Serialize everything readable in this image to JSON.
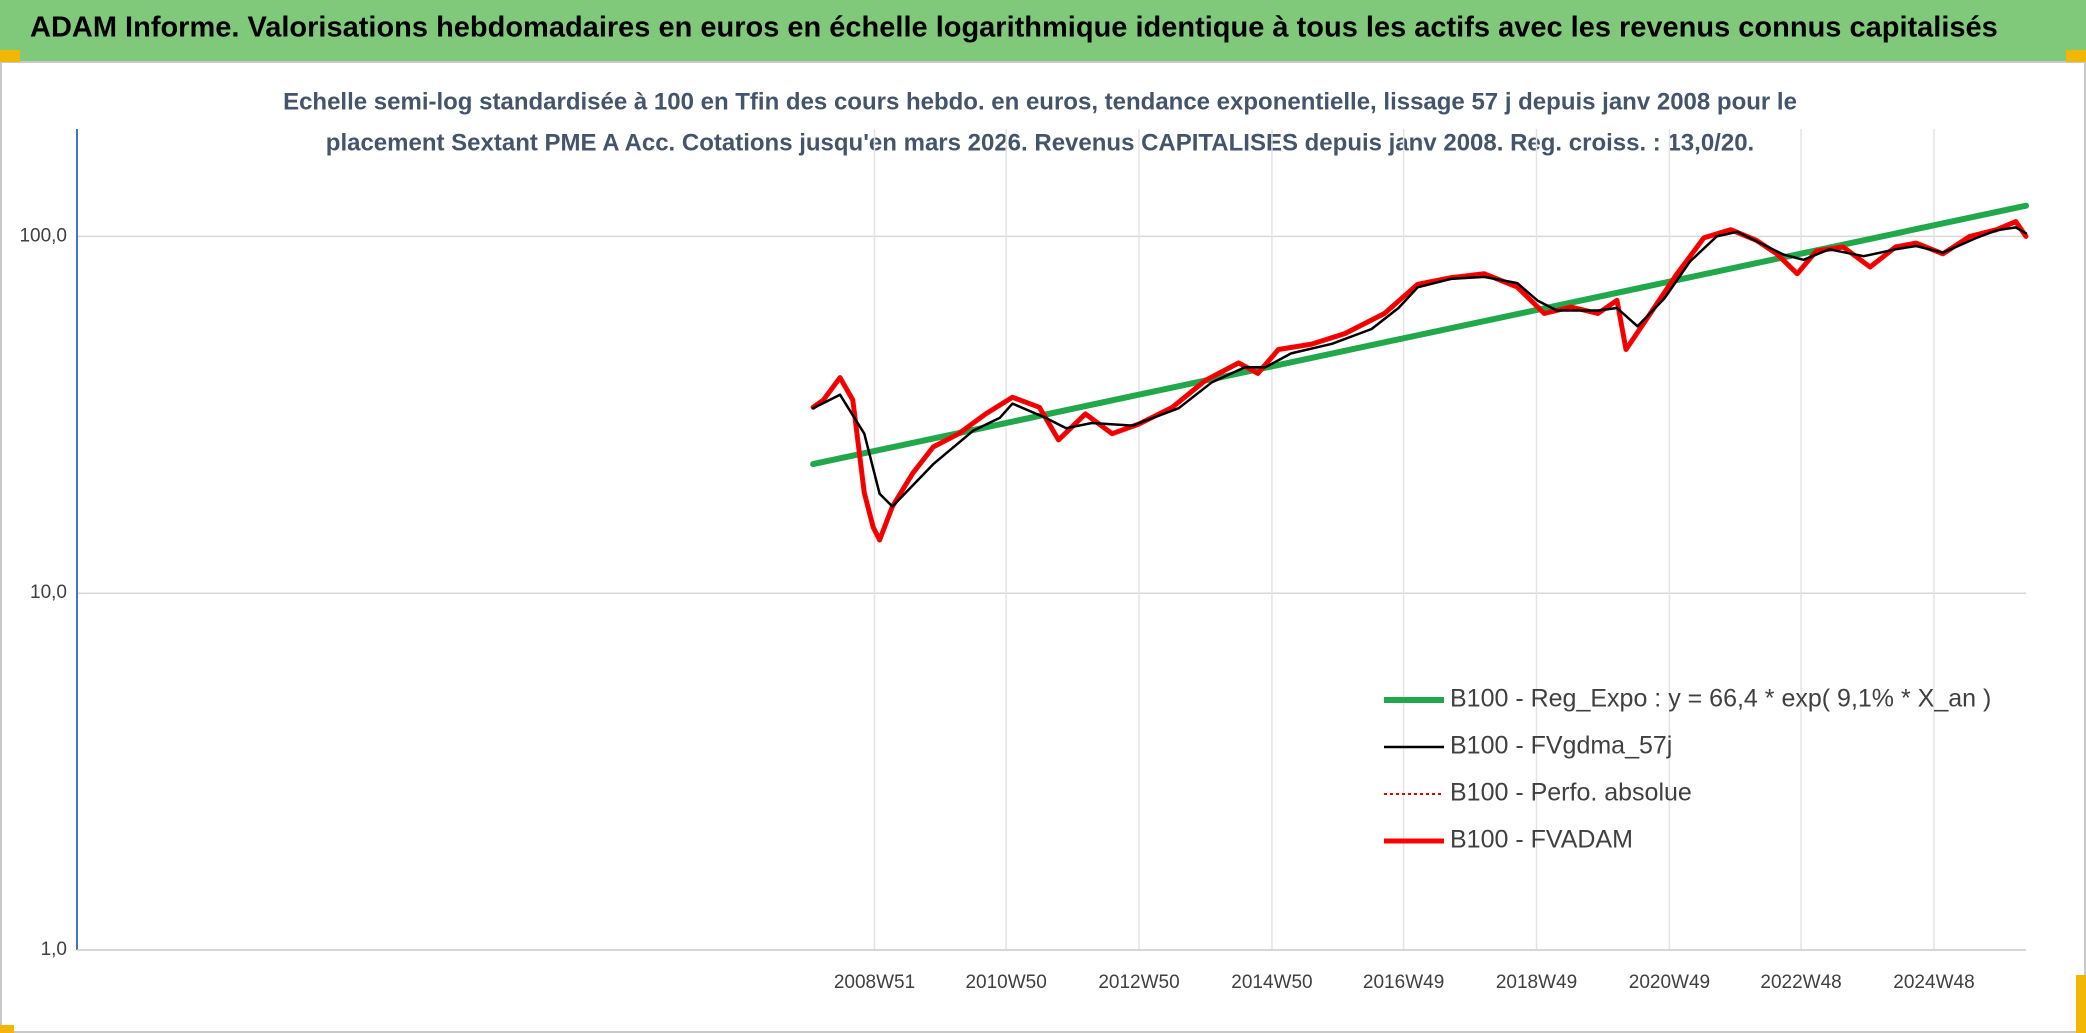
{
  "chart_data": {
    "type": "line",
    "title": "ADAM Informe. Valorisations hebdomadaires en euros en échelle logarithmique identique à tous les actifs avec les revenus connus capitalisés",
    "subtitle": [
      "Echelle semi-log standardisée à 100 en Tfin des cours hebdo. en euros, tendance exponentielle, lissage 57 j depuis janv 2008 pour le",
      "placement Sextant PME A Acc. Cotations jusqu'en mars 2026. Revenus CAPITALISES depuis janv 2008. Reg. croiss. : 13,0/20."
    ],
    "log_scale": true,
    "grid": true,
    "legend_position": "right",
    "xlim": [
      "1996W51",
      "2026W16"
    ],
    "xticks": [
      "2008W51",
      "2010W50",
      "2012W50",
      "2014W50",
      "2016W49",
      "2018W49",
      "2020W49",
      "2022W48",
      "2024W48"
    ],
    "ylim": [
      1,
      200
    ],
    "yticks": [
      {
        "value": 1,
        "label": "1,0"
      },
      {
        "value": 10,
        "label": "10,0"
      },
      {
        "value": 100,
        "label": "100,0"
      }
    ],
    "series": [
      {
        "name": "B100 - Reg_Expo : y = 66,4 * exp( 9,1% *  X_an )",
        "color": "#21a84a",
        "width": 6,
        "dash": "none",
        "x": [
          "2008W03",
          "2026W16"
        ],
        "values": [
          23.0,
          121.9
        ]
      },
      {
        "name": "B100 - FVgdma_57j",
        "color": "#000000",
        "width": 2.5,
        "dash": "none",
        "x": [
          "2008W03",
          "2008W24",
          "2008W43",
          "2009W03",
          "2009W13",
          "2009W45",
          "2010W24",
          "2010W45",
          "2011W03",
          "2011W29",
          "2011W45",
          "2012W13",
          "2012W45",
          "2013W29",
          "2014W03",
          "2014W29",
          "2014W45",
          "2015W13",
          "2015W45",
          "2016W24",
          "2016W45",
          "2017W08",
          "2017W34",
          "2018W08",
          "2018W34",
          "2018W50",
          "2019W13",
          "2019W45",
          "2020W08",
          "2020W24",
          "2020W45",
          "2021W13",
          "2021W34",
          "2021W50",
          "2022W13",
          "2022W34",
          "2022W50",
          "2023W18",
          "2023W45",
          "2024W18",
          "2024W34",
          "2025W03",
          "2025W29",
          "2025W45",
          "2026W08",
          "2026W16"
        ],
        "values": [
          33,
          36,
          28,
          19,
          17.5,
          23,
          28.5,
          31,
          34,
          31,
          29,
          30,
          29.5,
          33,
          39,
          43,
          43,
          47,
          50,
          55,
          63,
          72,
          76,
          77,
          74,
          66,
          62,
          62,
          63,
          56,
          67,
          85,
          100,
          103,
          97,
          89,
          86,
          92,
          88,
          92,
          94,
          90,
          99,
          104,
          106,
          102
        ]
      },
      {
        "name": "B100 - Perfo. absolue",
        "color": "#e00000",
        "width": 2,
        "dash": "3 3",
        "x": [
          "2008W03",
          "2008W11",
          "2008W24",
          "2008W34",
          "2008W43",
          "2008W50",
          "2009W03",
          "2009W13",
          "2009W29",
          "2009W45",
          "2010W13",
          "2010W34",
          "2011W03",
          "2011W24",
          "2011W39",
          "2012W08",
          "2012W29",
          "2012W50",
          "2013W24",
          "2013W50",
          "2014W24",
          "2014W39",
          "2015W03",
          "2015W29",
          "2016W03",
          "2016W34",
          "2017W08",
          "2017W34",
          "2018W08",
          "2018W34",
          "2019W03",
          "2019W24",
          "2019W45",
          "2020W08",
          "2020W15",
          "2020W34",
          "2021W03",
          "2021W24",
          "2021W45",
          "2022W13",
          "2022W29",
          "2022W45",
          "2023W08",
          "2023W29",
          "2023W50",
          "2024W18",
          "2024W34",
          "2025W03",
          "2025W24",
          "2025W45",
          "2026W08",
          "2026W16"
        ],
        "values": [
          33.2,
          34.8,
          40.2,
          34.8,
          19.1,
          15.3,
          14.1,
          17.5,
          21.7,
          25.7,
          28.0,
          31.8,
          35.4,
          33.2,
          26.9,
          31.8,
          28.0,
          29.8,
          33.2,
          39.5,
          44.2,
          41.3,
          48.2,
          49.9,
          53.4,
          60.8,
          73.4,
          76.6,
          78.6,
          72.1,
          60.8,
          63.4,
          60.8,
          66.2,
          48.2,
          60.8,
          78.6,
          99.1,
          104.4,
          97.5,
          89.4,
          78.6,
          91.0,
          93.4,
          82.1,
          93.4,
          95.8,
          89.4,
          100,
          104.4,
          110,
          100
        ]
      },
      {
        "name": "B100 - FVADAM",
        "color": "#ff0000",
        "width": 5,
        "dash": "none",
        "x": [
          "2008W03",
          "2008W11",
          "2008W24",
          "2008W34",
          "2008W43",
          "2008W50",
          "2009W03",
          "2009W13",
          "2009W29",
          "2009W45",
          "2010W13",
          "2010W34",
          "2011W03",
          "2011W24",
          "2011W39",
          "2012W08",
          "2012W29",
          "2012W50",
          "2013W24",
          "2013W50",
          "2014W24",
          "2014W39",
          "2015W03",
          "2015W29",
          "2016W03",
          "2016W34",
          "2017W08",
          "2017W34",
          "2018W08",
          "2018W34",
          "2019W03",
          "2019W24",
          "2019W45",
          "2020W08",
          "2020W15",
          "2020W34",
          "2021W03",
          "2021W24",
          "2021W45",
          "2022W13",
          "2022W29",
          "2022W45",
          "2023W08",
          "2023W29",
          "2023W50",
          "2024W18",
          "2024W34",
          "2025W03",
          "2025W24",
          "2025W45",
          "2026W08",
          "2026W16"
        ],
        "values": [
          33.2,
          34.8,
          40.2,
          34.8,
          19.1,
          15.3,
          14.1,
          17.5,
          21.7,
          25.7,
          28.0,
          31.8,
          35.4,
          33.2,
          26.9,
          31.8,
          28.0,
          29.8,
          33.2,
          39.5,
          44.2,
          41.3,
          48.2,
          49.9,
          53.4,
          60.8,
          73.4,
          76.6,
          78.6,
          72.1,
          60.8,
          63.4,
          60.8,
          66.2,
          48.2,
          60.8,
          78.6,
          99.1,
          104.4,
          97.5,
          89.4,
          78.6,
          91.0,
          93.4,
          82.1,
          93.4,
          95.8,
          89.4,
          100,
          104.4,
          110,
          100
        ]
      }
    ]
  }
}
